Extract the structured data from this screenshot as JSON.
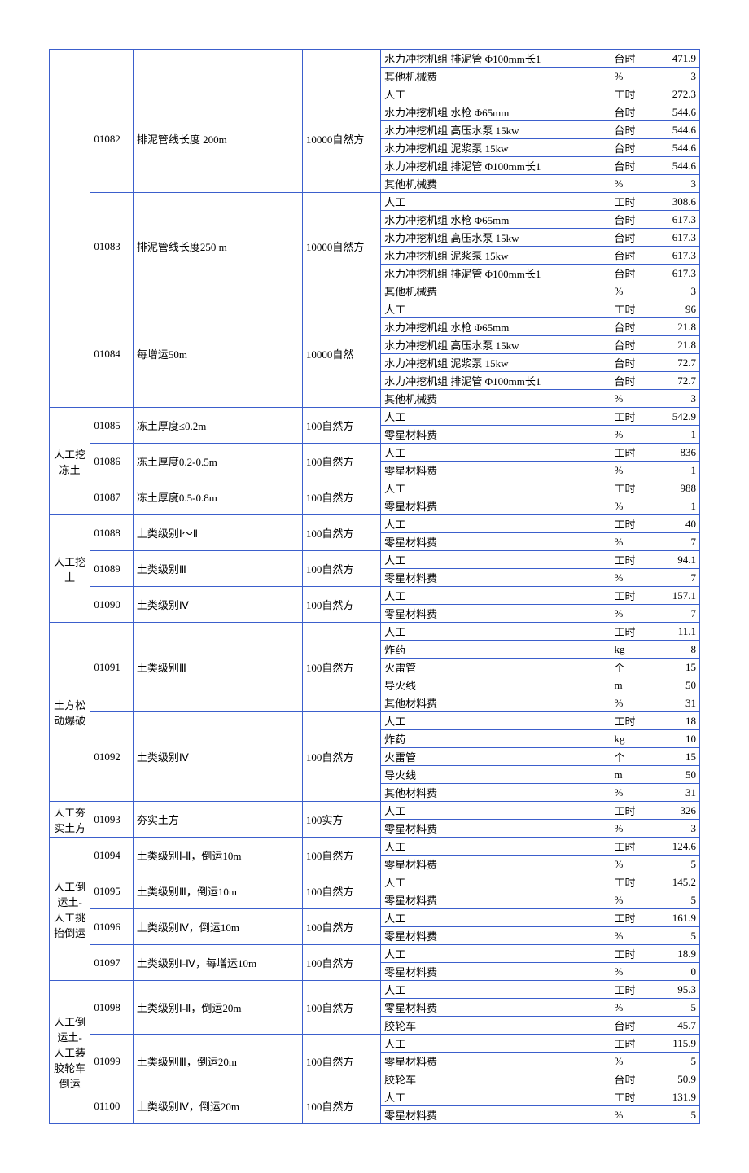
{
  "colors": {
    "border": "#3b5fcc",
    "sep": "#d82a2a",
    "text": "#000000",
    "bg": "#ffffff"
  },
  "groups": [
    {
      "cat": "",
      "subs": [
        {
          "code": "",
          "desc": "",
          "unit": "",
          "rows": [
            {
              "item": "水力冲挖机组 排泥管 Φ100mm长1",
              "u": "台时",
              "val": "471.9"
            },
            {
              "item": "其他机械费",
              "u": "%",
              "val": "3"
            }
          ]
        },
        {
          "code": "01082",
          "desc": "排泥管线长度 200m",
          "unit": "10000自然方",
          "rows": [
            {
              "item": "人工",
              "u": "工时",
              "val": "272.3"
            },
            {
              "item": "水力冲挖机组 水枪 Φ65mm",
              "u": "台时",
              "val": "544.6"
            },
            {
              "item": "水力冲挖机组 高压水泵 15kw",
              "u": "台时",
              "val": "544.6"
            },
            {
              "item": "水力冲挖机组 泥浆泵 15kw",
              "u": "台时",
              "val": "544.6"
            },
            {
              "item": "水力冲挖机组 排泥管 Φ100mm长1",
              "u": "台时",
              "val": "544.6"
            },
            {
              "item": "其他机械费",
              "u": "%",
              "val": "3"
            }
          ]
        },
        {
          "code": "01083",
          "desc": "排泥管线长度250 m",
          "unit": "10000自然方",
          "rows": [
            {
              "item": "人工",
              "u": "工时",
              "val": "308.6"
            },
            {
              "item": "水力冲挖机组 水枪 Φ65mm",
              "u": "台时",
              "val": "617.3"
            },
            {
              "item": "水力冲挖机组 高压水泵 15kw",
              "u": "台时",
              "val": "617.3"
            },
            {
              "item": "水力冲挖机组 泥浆泵 15kw",
              "u": "台时",
              "val": "617.3"
            },
            {
              "item": "水力冲挖机组 排泥管 Φ100mm长1",
              "u": "台时",
              "val": "617.3"
            },
            {
              "item": "其他机械费",
              "u": "%",
              "val": "3"
            }
          ]
        },
        {
          "code": "01084",
          "desc": "每增运50m",
          "unit": "10000自然",
          "rows": [
            {
              "item": "人工",
              "u": "工时",
              "val": "96"
            },
            {
              "item": "水力冲挖机组 水枪 Φ65mm",
              "u": "台时",
              "val": "21.8"
            },
            {
              "item": "水力冲挖机组 高压水泵 15kw",
              "u": "台时",
              "val": "21.8"
            },
            {
              "item": "水力冲挖机组 泥浆泵 15kw",
              "u": "台时",
              "val": "72.7"
            },
            {
              "item": "水力冲挖机组 排泥管 Φ100mm长1",
              "u": "台时",
              "val": "72.7"
            },
            {
              "item": "其他机械费",
              "u": "%",
              "val": "3"
            }
          ]
        }
      ]
    },
    {
      "cat": "人工挖冻土",
      "subs": [
        {
          "code": "01085",
          "desc": "冻土厚度≤0.2m",
          "unit": "100自然方",
          "rows": [
            {
              "item": "人工",
              "u": "工时",
              "val": "542.9"
            },
            {
              "item": "零星材料费",
              "u": "%",
              "val": "1"
            }
          ]
        },
        {
          "code": "01086",
          "desc": "冻土厚度0.2-0.5m",
          "unit": "100自然方",
          "rows": [
            {
              "item": "人工",
              "u": "工时",
              "val": "836"
            },
            {
              "item": "零星材料费",
              "u": "%",
              "val": "1"
            }
          ]
        },
        {
          "code": "01087",
          "desc": "冻土厚度0.5-0.8m",
          "unit": "100自然方",
          "rows": [
            {
              "item": "人工",
              "u": "工时",
              "val": "988"
            },
            {
              "item": "零星材料费",
              "u": "%",
              "val": "1"
            }
          ]
        }
      ]
    },
    {
      "cat": "人工挖土",
      "subs": [
        {
          "code": "01088",
          "desc": "土类级别Ⅰ～Ⅱ",
          "unit": "100自然方",
          "rows": [
            {
              "item": "人工",
              "u": "工时",
              "val": "40"
            },
            {
              "item": "零星材料费",
              "u": "%",
              "val": "7"
            }
          ]
        },
        {
          "code": "01089",
          "desc": "土类级别Ⅲ",
          "unit": "100自然方",
          "rows": [
            {
              "item": "人工",
              "u": "工时",
              "val": "94.1"
            },
            {
              "item": "零星材料费",
              "u": "%",
              "val": "7"
            }
          ]
        },
        {
          "code": "01090",
          "desc": "土类级别Ⅳ",
          "unit": "100自然方",
          "rows": [
            {
              "item": "人工",
              "u": "工时",
              "val": "157.1"
            },
            {
              "item": "零星材料费",
              "u": "%",
              "val": "7"
            }
          ]
        }
      ]
    },
    {
      "cat": "土方松动爆破",
      "subs": [
        {
          "code": "01091",
          "desc": "土类级别Ⅲ",
          "unit": "100自然方",
          "rows": [
            {
              "item": "人工",
              "u": "工时",
              "val": "11.1"
            },
            {
              "item": "炸药",
              "u": "kg",
              "val": "8"
            },
            {
              "item": "火雷管",
              "u": "个",
              "val": "15"
            },
            {
              "item": "导火线",
              "u": "m",
              "val": "50"
            },
            {
              "item": "其他材料费",
              "u": "%",
              "val": "31"
            }
          ]
        },
        {
          "code": "01092",
          "desc": "土类级别Ⅳ",
          "unit": "100自然方",
          "rows": [
            {
              "item": "人工",
              "u": "工时",
              "val": "18"
            },
            {
              "item": "炸药",
              "u": "kg",
              "val": "10"
            },
            {
              "item": "火雷管",
              "u": "个",
              "val": "15"
            },
            {
              "item": "导火线",
              "u": "m",
              "val": "50"
            },
            {
              "item": "其他材料费",
              "u": "%",
              "val": "31"
            }
          ]
        }
      ]
    },
    {
      "cat": "人工夯实土方",
      "subs": [
        {
          "code": "01093",
          "desc": "夯实土方",
          "unit": "100实方",
          "rows": [
            {
              "item": "人工",
              "u": "工时",
              "val": "326"
            },
            {
              "item": "零星材料费",
              "u": "%",
              "val": "3"
            }
          ]
        }
      ]
    },
    {
      "cat": "人工倒运土-人工挑抬倒运",
      "subs": [
        {
          "code": "01094",
          "desc": "土类级别Ⅰ-Ⅱ，倒运10m",
          "unit": "100自然方",
          "rows": [
            {
              "item": "人工",
              "u": "工时",
              "val": "124.6"
            },
            {
              "item": "零星材料费",
              "u": "%",
              "val": "5"
            }
          ]
        },
        {
          "code": "01095",
          "desc": "土类级别Ⅲ，倒运10m",
          "unit": "100自然方",
          "rows": [
            {
              "item": "人工",
              "u": "工时",
              "val": "145.2"
            },
            {
              "item": "零星材料费",
              "u": "%",
              "val": "5"
            }
          ]
        },
        {
          "code": "01096",
          "desc": "土类级别Ⅳ，倒运10m",
          "unit": "100自然方",
          "rows": [
            {
              "item": "人工",
              "u": "工时",
              "val": "161.9"
            },
            {
              "item": "零星材料费",
              "u": "%",
              "val": "5"
            }
          ]
        },
        {
          "code": "01097",
          "desc": "土类级别Ⅰ-Ⅳ，每增运10m",
          "unit": "100自然方",
          "rows": [
            {
              "item": "人工",
              "u": "工时",
              "val": "18.9"
            },
            {
              "item": "零星材料费",
              "u": "%",
              "val": "0"
            }
          ]
        }
      ]
    },
    {
      "cat": "人工倒运土-人工装胶轮车倒运",
      "subs": [
        {
          "code": "01098",
          "desc": "土类级别Ⅰ-Ⅱ，倒运20m",
          "unit": "100自然方",
          "rows": [
            {
              "item": "人工",
              "u": "工时",
              "val": "95.3"
            },
            {
              "item": "零星材料费",
              "u": "%",
              "val": "5"
            },
            {
              "item": "胶轮车",
              "u": "台时",
              "val": "45.7"
            }
          ]
        },
        {
          "code": "01099",
          "desc": "土类级别Ⅲ，倒运20m",
          "unit": "100自然方",
          "rows": [
            {
              "item": "人工",
              "u": "工时",
              "val": "115.9"
            },
            {
              "item": "零星材料费",
              "u": "%",
              "val": "5"
            },
            {
              "item": "胶轮车",
              "u": "台时",
              "val": "50.9"
            }
          ]
        },
        {
          "code": "01100",
          "desc": "土类级别Ⅳ，倒运20m",
          "unit": "100自然方",
          "rows": [
            {
              "item": "人工",
              "u": "工时",
              "val": "131.9"
            },
            {
              "item": "零星材料费",
              "u": "%",
              "val": "5"
            }
          ]
        }
      ]
    }
  ]
}
